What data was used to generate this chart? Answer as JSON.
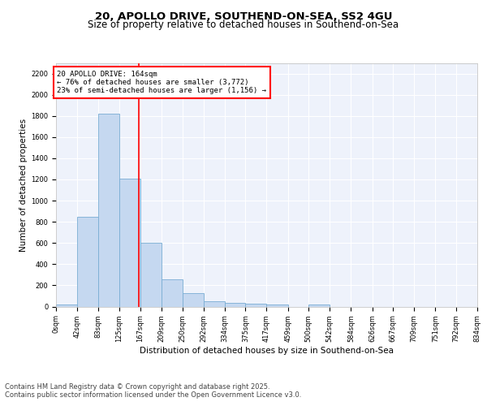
{
  "title1": "20, APOLLO DRIVE, SOUTHEND-ON-SEA, SS2 4GU",
  "title2": "Size of property relative to detached houses in Southend-on-Sea",
  "xlabel": "Distribution of detached houses by size in Southend-on-Sea",
  "ylabel": "Number of detached properties",
  "bar_color": "#c5d8f0",
  "bar_edge_color": "#7aadd4",
  "vline_x": 164,
  "vline_color": "red",
  "annotation_title": "20 APOLLO DRIVE: 164sqm",
  "annotation_line1": "← 76% of detached houses are smaller (3,772)",
  "annotation_line2": "23% of semi-detached houses are larger (1,156) →",
  "annotation_box_color": "red",
  "bin_edges": [
    0,
    42,
    83,
    125,
    167,
    209,
    250,
    292,
    334,
    375,
    417,
    459,
    500,
    542,
    584,
    626,
    667,
    709,
    751,
    792,
    834
  ],
  "bar_heights": [
    20,
    850,
    1820,
    1210,
    600,
    260,
    130,
    50,
    35,
    25,
    20,
    0,
    20,
    0,
    0,
    0,
    0,
    0,
    0,
    0
  ],
  "ylim": [
    0,
    2300
  ],
  "yticks": [
    0,
    200,
    400,
    600,
    800,
    1000,
    1200,
    1400,
    1600,
    1800,
    2000,
    2200
  ],
  "background_color": "#eef2fb",
  "grid_color": "#ffffff",
  "footer1": "Contains HM Land Registry data © Crown copyright and database right 2025.",
  "footer2": "Contains public sector information licensed under the Open Government Licence v3.0.",
  "title_fontsize": 9.5,
  "subtitle_fontsize": 8.5,
  "axis_label_fontsize": 7.5,
  "tick_fontsize": 6,
  "footer_fontsize": 6,
  "annotation_fontsize": 6.5
}
